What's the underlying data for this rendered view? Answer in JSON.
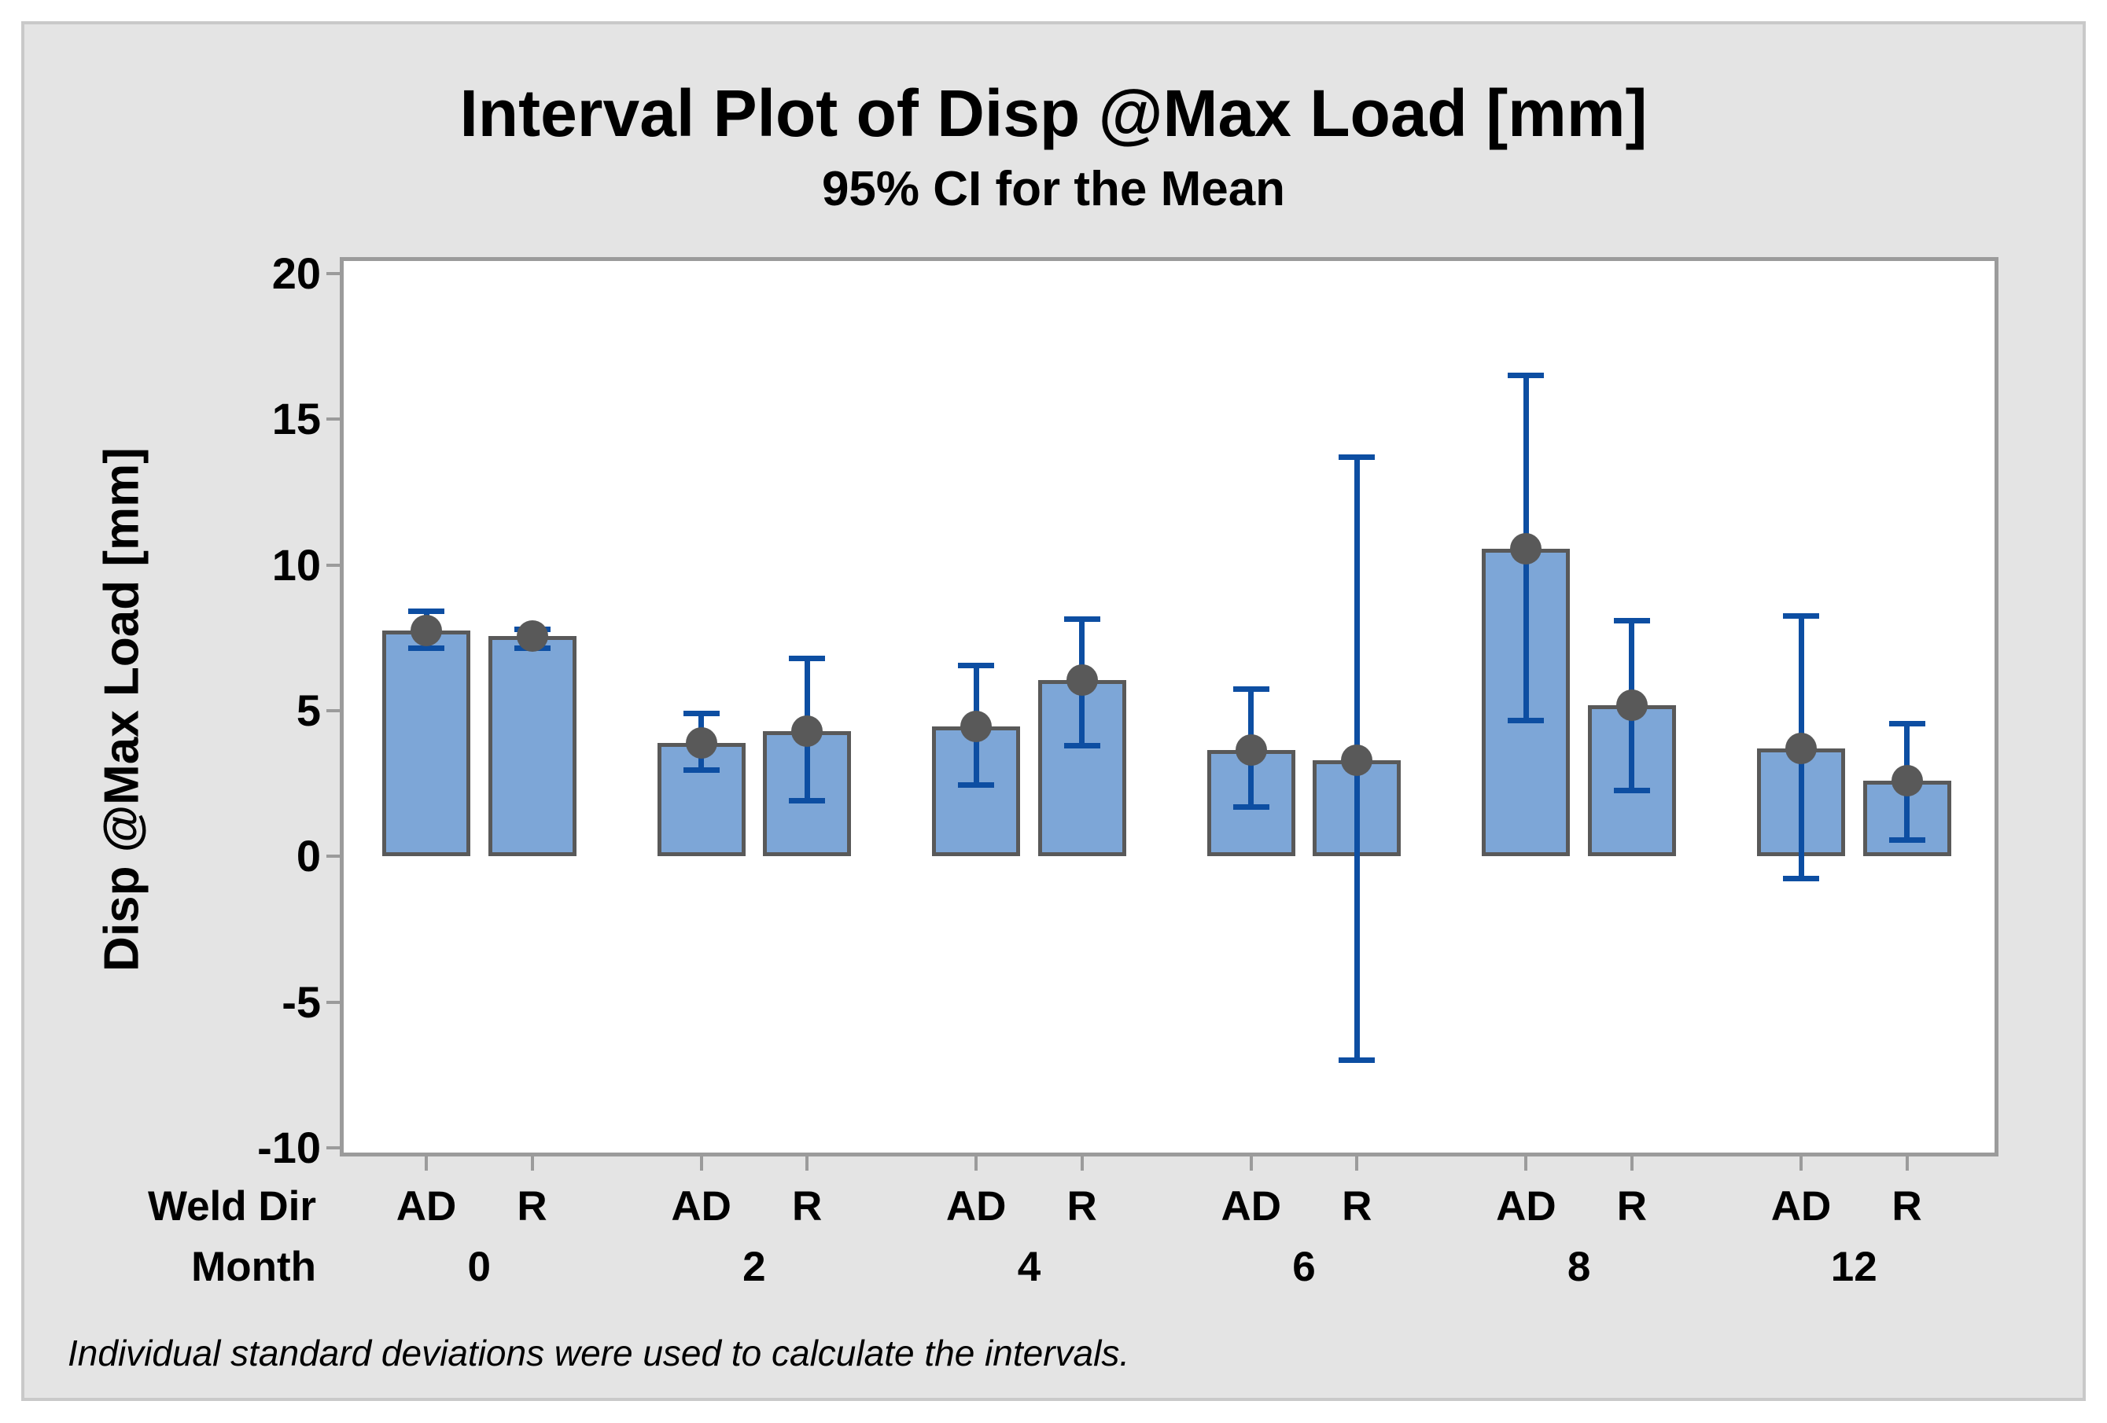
{
  "chart_data": {
    "type": "bar",
    "title": "Interval Plot of Disp @Max Load [mm]",
    "subtitle": "95% CI for the Mean",
    "ylabel": "Disp @Max Load [mm]",
    "footnote": "Individual standard deviations were used to calculate the intervals.",
    "row_labels": {
      "weld_dir": "Weld Dir",
      "month": "Month"
    },
    "y_ticks": [
      20,
      15,
      10,
      5,
      0,
      -5,
      -10
    ],
    "ylim": [
      -10.2,
      20.43
    ],
    "legend": "none",
    "grid": "off",
    "groups": [
      {
        "month": "0",
        "bars": [
          {
            "dir": "AD",
            "mean": 7.75,
            "ci": [
              7.15,
              8.4
            ]
          },
          {
            "dir": "R",
            "mean": 7.55,
            "ci": [
              7.15,
              7.8
            ]
          }
        ]
      },
      {
        "month": "2",
        "bars": [
          {
            "dir": "AD",
            "mean": 3.9,
            "ci": [
              2.95,
              4.9
            ]
          },
          {
            "dir": "R",
            "mean": 4.3,
            "ci": [
              1.9,
              6.8
            ]
          }
        ]
      },
      {
        "month": "4",
        "bars": [
          {
            "dir": "AD",
            "mean": 4.45,
            "ci": [
              2.45,
              6.55
            ]
          },
          {
            "dir": "R",
            "mean": 6.05,
            "ci": [
              3.8,
              8.15
            ]
          }
        ]
      },
      {
        "month": "6",
        "bars": [
          {
            "dir": "AD",
            "mean": 3.65,
            "ci": [
              1.7,
              5.75
            ]
          },
          {
            "dir": "R",
            "mean": 3.3,
            "ci": [
              -7.0,
              13.7
            ]
          }
        ]
      },
      {
        "month": "8",
        "bars": [
          {
            "dir": "AD",
            "mean": 10.55,
            "ci": [
              4.65,
              16.5
            ]
          },
          {
            "dir": "R",
            "mean": 5.2,
            "ci": [
              2.25,
              8.1
            ]
          }
        ]
      },
      {
        "month": "12",
        "bars": [
          {
            "dir": "AD",
            "mean": 3.7,
            "ci": [
              -0.75,
              8.25
            ]
          },
          {
            "dir": "R",
            "mean": 2.6,
            "ci": [
              0.55,
              4.55
            ]
          }
        ]
      }
    ],
    "colors": {
      "bar_fill": "#7da6d7",
      "bar_border": "#595959",
      "interval_line": "#0d4ea2",
      "mean_dot": "#595959",
      "axis_line": "#9b9b9b",
      "figure_bg": "#e4e4e4",
      "frame": "#c9c9c9",
      "plot_bg": "#ffffff"
    }
  }
}
